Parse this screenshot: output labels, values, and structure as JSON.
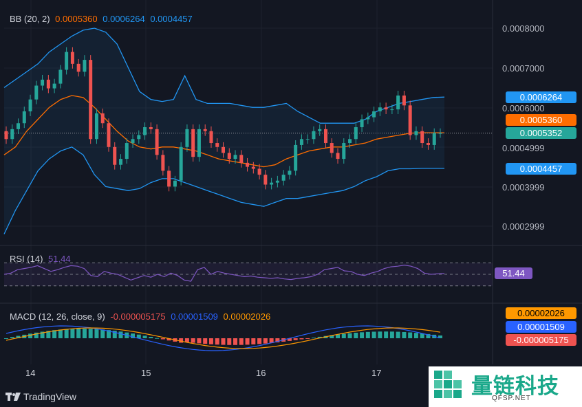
{
  "colors": {
    "background": "#131722",
    "bullish": "#26a69a",
    "bearish": "#ef5350",
    "bb_basis": "#ff6d00",
    "bb_bands": "#2196f3",
    "rsi_line": "#7e57c2",
    "macd_line": "#2962ff",
    "signal_line": "#ff9800"
  },
  "bb": {
    "title": "BB (20, 2)",
    "basis": "0.0005360",
    "upper": "0.0006264",
    "lower": "0.0004457"
  },
  "rsi": {
    "title": "RSI (14)",
    "value": "51.44"
  },
  "macd": {
    "title": "MACD (12, 26, close, 9)",
    "histogram": "-0.000005175",
    "macd": "0.00001509",
    "signal": "0.00002026"
  },
  "price_axis": [
    "0.0008000",
    "0.0007000",
    "0.0006000",
    "0.0004999",
    "0.0003999",
    "0.0002999"
  ],
  "price_tags": {
    "upper": "0.0006264",
    "basis": "0.0005360",
    "last": "0.0005352",
    "lower": "0.0004457"
  },
  "date_axis": [
    "14",
    "15",
    "16",
    "17"
  ],
  "branding": {
    "tradingview": "TradingView",
    "watermark_title": "量链科技",
    "watermark_sub": "QFSP.NET"
  },
  "chart_data": {
    "type": "candlestick",
    "x": [
      "13.9",
      "14.0",
      "14.05",
      "14.1",
      "14.15",
      "14.2",
      "14.25",
      "14.3",
      "14.35",
      "14.4",
      "14.45",
      "14.5",
      "14.55",
      "14.6",
      "14.65",
      "14.7",
      "14.75",
      "14.8",
      "14.85",
      "14.9",
      "14.95",
      "15.0",
      "15.05",
      "15.1",
      "15.15",
      "15.2",
      "15.25",
      "15.3",
      "15.35",
      "15.4",
      "15.45",
      "15.5",
      "15.55",
      "15.6",
      "15.65",
      "15.7",
      "15.75",
      "15.8",
      "15.85",
      "15.9",
      "15.95",
      "16.0",
      "16.05",
      "16.1",
      "16.15",
      "16.2",
      "16.25",
      "16.3",
      "16.35",
      "16.4",
      "16.45",
      "16.5",
      "16.55",
      "16.6",
      "16.65",
      "16.7",
      "16.75",
      "16.8",
      "16.85",
      "16.9",
      "16.95",
      "17.0",
      "17.05",
      "17.1",
      "17.15",
      "17.2",
      "17.25",
      "17.3",
      "17.35",
      "17.4",
      "17.45",
      "17.5",
      "17.55"
    ],
    "open": [
      0.00054,
      0.00052,
      0.000545,
      0.00056,
      0.00059,
      0.00062,
      0.000655,
      0.00067,
      0.000648,
      0.00066,
      0.000695,
      0.00074,
      0.00071,
      0.00069,
      0.00072,
      0.00052,
      0.000585,
      0.00056,
      0.0005,
      0.000455,
      0.00047,
      0.00051,
      0.00052,
      0.00053,
      0.00055,
      0.000545,
      0.00048,
      0.00044,
      0.0004,
      0.000415,
      0.0005,
      0.000545,
      0.000475,
      0.000545,
      0.00054,
      0.00051,
      0.0005,
      0.000485,
      0.00047,
      0.00048,
      0.00046,
      0.00045,
      0.000445,
      0.00043,
      0.000405,
      0.00041,
      0.000415,
      0.00043,
      0.00044,
      0.000505,
      0.00052,
      0.00052,
      0.00054,
      0.000545,
      0.00051,
      0.000485,
      0.00047,
      0.00051,
      0.00052,
      0.00055,
      0.00057,
      0.000575,
      0.00059,
      0.0006,
      0.000595,
      0.000595,
      0.00063,
      0.000605,
      0.00053,
      0.00054,
      0.00051,
      0.000505,
      0.000535
    ],
    "close": [
      0.00052,
      0.000545,
      0.00056,
      0.00059,
      0.00062,
      0.000655,
      0.00067,
      0.000648,
      0.00066,
      0.000695,
      0.00074,
      0.00071,
      0.00069,
      0.00072,
      0.00052,
      0.000585,
      0.00056,
      0.0005,
      0.000455,
      0.00047,
      0.00051,
      0.00052,
      0.00053,
      0.00055,
      0.000545,
      0.00048,
      0.00044,
      0.0004,
      0.000415,
      0.0005,
      0.000545,
      0.000475,
      0.000545,
      0.00054,
      0.00051,
      0.0005,
      0.000485,
      0.00047,
      0.00048,
      0.00046,
      0.00045,
      0.000445,
      0.00043,
      0.000405,
      0.00041,
      0.000415,
      0.00043,
      0.00044,
      0.000505,
      0.00052,
      0.00052,
      0.00054,
      0.000545,
      0.00051,
      0.000485,
      0.00047,
      0.00051,
      0.00052,
      0.00055,
      0.00057,
      0.000575,
      0.00059,
      0.0006,
      0.000595,
      0.000595,
      0.00063,
      0.000605,
      0.00053,
      0.00054,
      0.00051,
      0.000505,
      0.000535,
      0.000535
    ],
    "bb_upper": [
      0.00065,
      0.00067,
      0.00069,
      0.00071,
      0.00074,
      0.00076,
      0.00078,
      0.000795,
      0.0008,
      0.00079,
      0.00076,
      0.0007,
      0.00064,
      0.00062,
      0.000615,
      0.00062,
      0.00068,
      0.00062,
      0.00061,
      0.00061,
      0.00061,
      0.000605,
      0.0006,
      0.0006,
      0.000605,
      0.00061,
      0.00059,
      0.000575,
      0.00056,
      0.00056,
      0.00056,
      0.00056,
      0.00057,
      0.00059,
      0.0006,
      0.00061,
      0.000615,
      0.00062,
      0.000625,
      0.000626
    ],
    "bb_basis": [
      0.00048,
      0.0005,
      0.00054,
      0.00057,
      0.0006,
      0.00062,
      0.00063,
      0.000625,
      0.0006,
      0.00057,
      0.00054,
      0.000515,
      0.0005,
      0.000495,
      0.0005,
      0.0005,
      0.000495,
      0.00049,
      0.00048,
      0.00047,
      0.000465,
      0.00046,
      0.000455,
      0.00045,
      0.000455,
      0.00047,
      0.00048,
      0.00049,
      0.000495,
      0.0005,
      0.0005,
      0.000505,
      0.00051,
      0.00052,
      0.000525,
      0.00053,
      0.000535,
      0.000536,
      0.000536,
      0.000536
    ],
    "bb_lower": [
      0.00028,
      0.00034,
      0.00039,
      0.00044,
      0.00047,
      0.00049,
      0.0005,
      0.00048,
      0.00043,
      0.0004,
      0.000395,
      0.00039,
      0.000395,
      0.00041,
      0.00042,
      0.00042,
      0.00041,
      0.0004,
      0.00039,
      0.00038,
      0.00037,
      0.00036,
      0.000355,
      0.00035,
      0.00036,
      0.00037,
      0.00037,
      0.000375,
      0.00038,
      0.000385,
      0.00039,
      0.0004,
      0.000415,
      0.000425,
      0.00044,
      0.000445,
      0.000445,
      0.000446,
      0.000446,
      0.000446
    ],
    "rsi": [
      50,
      52,
      58,
      60,
      62,
      65,
      60,
      55,
      58,
      62,
      65,
      64,
      60,
      48,
      46,
      55,
      52,
      50,
      45,
      40,
      44,
      48,
      45,
      50,
      46,
      52,
      48,
      40,
      38,
      58,
      62,
      50,
      55,
      52,
      50,
      48,
      46,
      47,
      45,
      44,
      43,
      44,
      42,
      41,
      43,
      44,
      46,
      50,
      58,
      60,
      62,
      56,
      55,
      50,
      48,
      52,
      55,
      60,
      63,
      64,
      66,
      64,
      60,
      52,
      50,
      51,
      51.44
    ]
  }
}
